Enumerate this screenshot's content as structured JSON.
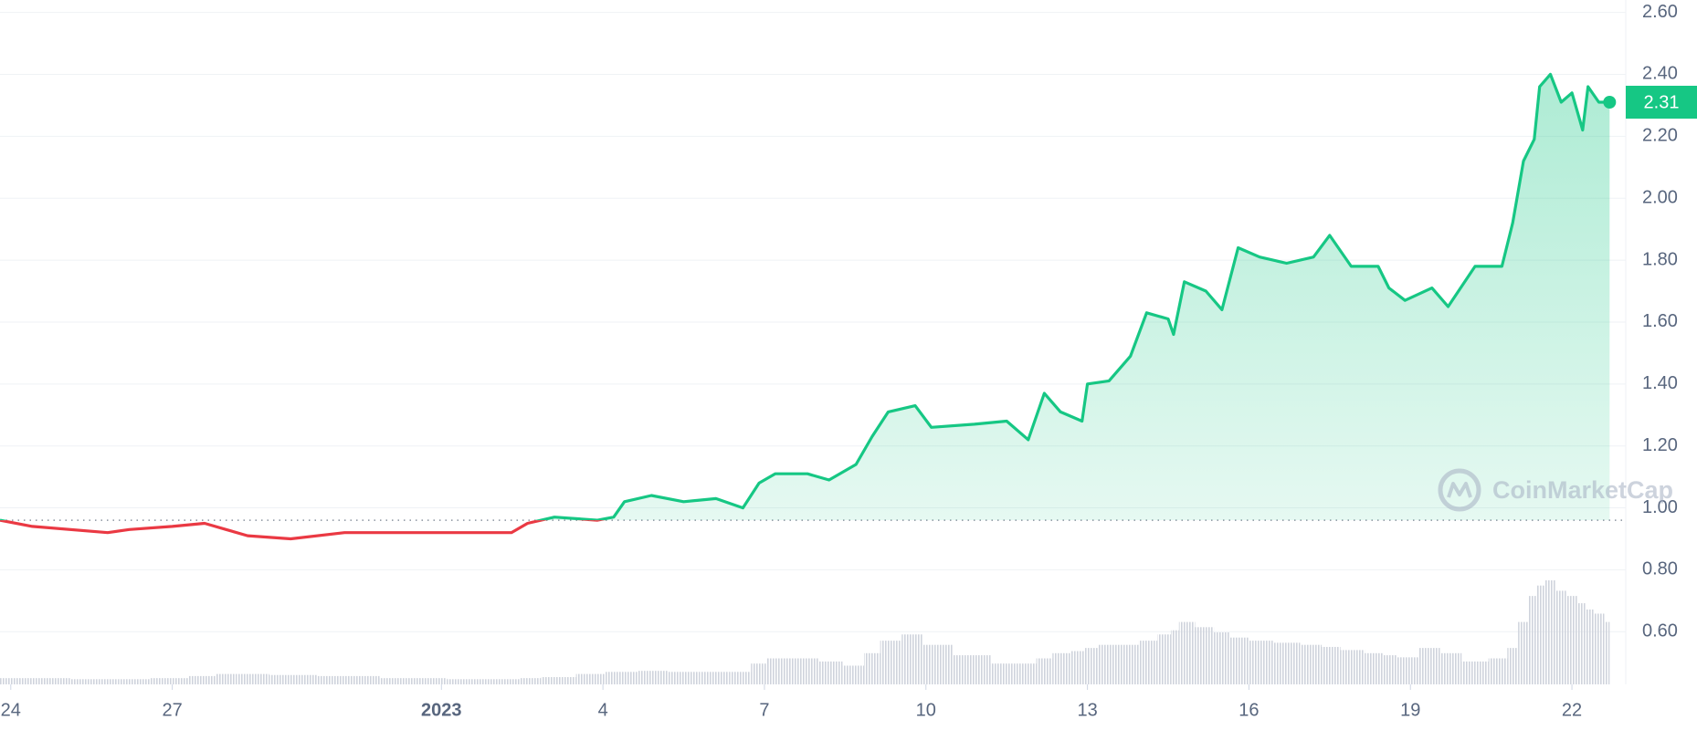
{
  "chart_data": {
    "type": "line",
    "x": [
      23.8,
      24.4,
      25.8,
      26.2,
      27,
      27.6,
      28,
      28.4,
      29.2,
      30.2,
      31.5,
      32.7,
      33.3,
      33.6,
      34.1,
      34.9,
      35.2,
      35.4,
      35.9,
      36.5,
      37.1,
      37.6,
      37.9,
      38.2,
      38.8,
      39.2,
      39.7,
      40,
      40.3,
      40.8,
      41.1,
      41.9,
      42.5,
      42.9,
      43.2,
      43.5,
      43.9,
      44,
      44.4,
      44.8,
      45.1,
      45.5,
      45.6,
      45.8,
      46.2,
      46.5,
      46.8,
      47.2,
      47.7,
      48.2,
      48.5,
      48.9,
      49.4,
      49.6,
      49.9,
      50.4,
      50.7,
      51.2,
      51.7,
      51.9,
      52.1,
      52.3,
      52.4,
      52.6,
      52.8,
      53,
      53.2,
      53.3,
      53.5,
      53.7
    ],
    "series": [
      {
        "color": "#16c784",
        "down_color": "#ea3943",
        "values": [
          0.96,
          0.94,
          0.92,
          0.93,
          0.94,
          0.95,
          0.93,
          0.91,
          0.9,
          0.92,
          0.92,
          0.92,
          0.92,
          0.95,
          0.97,
          0.96,
          0.97,
          1.02,
          1.04,
          1.02,
          1.03,
          1.0,
          1.08,
          1.11,
          1.11,
          1.09,
          1.14,
          1.23,
          1.31,
          1.33,
          1.26,
          1.27,
          1.28,
          1.22,
          1.37,
          1.31,
          1.28,
          1.4,
          1.41,
          1.49,
          1.63,
          1.61,
          1.56,
          1.73,
          1.7,
          1.64,
          1.84,
          1.81,
          1.79,
          1.81,
          1.88,
          1.78,
          1.78,
          1.71,
          1.67,
          1.71,
          1.65,
          1.78,
          1.78,
          1.92,
          2.12,
          2.19,
          2.36,
          2.4,
          2.31,
          2.34,
          2.22,
          2.36,
          2.31,
          2.31
        ]
      }
    ],
    "volume": {
      "color": "#cfd3dc",
      "values": [
        6,
        6,
        5,
        5,
        6,
        8,
        10,
        10,
        9,
        8,
        6,
        5,
        5,
        6,
        7,
        10,
        12,
        12,
        13,
        12,
        12,
        12,
        20,
        25,
        25,
        22,
        18,
        30,
        42,
        48,
        38,
        28,
        20,
        20,
        25,
        30,
        32,
        35,
        38,
        38,
        42,
        48,
        52,
        60,
        55,
        50,
        45,
        42,
        40,
        38,
        36,
        33,
        30,
        28,
        26,
        35,
        30,
        22,
        25,
        35,
        60,
        85,
        95,
        100,
        90,
        85,
        78,
        72,
        68,
        60
      ]
    },
    "baseline": 0.96,
    "xlim": [
      23.8,
      54.0
    ],
    "ylim": [
      0.43,
      2.64
    ],
    "xticks": [
      24,
      27,
      {
        "value": 32,
        "label": "2023"
      },
      {
        "value": 35,
        "label": "4"
      },
      {
        "value": 38,
        "label": "7"
      },
      {
        "value": 41,
        "label": "10"
      },
      {
        "value": 44,
        "label": "13"
      },
      {
        "value": 47,
        "label": "16"
      },
      {
        "value": 50,
        "label": "19"
      },
      {
        "value": 53,
        "label": "22"
      }
    ],
    "yticks": [
      {
        "value": 0.6,
        "label": "0.60"
      },
      {
        "value": 0.8,
        "label": "0.80"
      },
      {
        "value": 1.0,
        "label": "1.00"
      },
      {
        "value": 1.2,
        "label": "1.20"
      },
      {
        "value": 1.4,
        "label": "1.40"
      },
      {
        "value": 1.6,
        "label": "1.60"
      },
      {
        "value": 1.8,
        "label": "1.80"
      },
      {
        "value": 2.0,
        "label": "2.00"
      },
      {
        "value": 2.2,
        "label": "2.20"
      },
      {
        "value": 2.4,
        "label": "2.40"
      },
      {
        "value": 2.6,
        "label": "2.60"
      }
    ],
    "grid": true,
    "watermark": "CoinMarketCap"
  }
}
